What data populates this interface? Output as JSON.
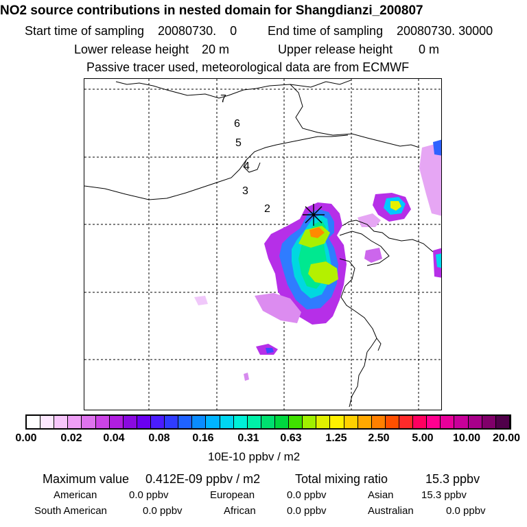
{
  "header": {
    "title": "NO2 source contributions in nested domain for Shangdianzi_200807",
    "start_label": "Start time of sampling",
    "start_value": "20080730.    0",
    "end_label": "End time of sampling",
    "end_value": "20080730. 30000",
    "lower_label": "Lower release height",
    "lower_value": "20 m",
    "upper_label": "Upper release height",
    "upper_value": "0 m",
    "tracer_line": "Passive tracer used, meteorological data are from ECMWF"
  },
  "map": {
    "day_labels": [
      "7",
      "6",
      "5",
      "4",
      "3",
      "2"
    ],
    "receptor": "Shangdianzi"
  },
  "colorbar": {
    "tick_labels": [
      "0.00",
      "0.02",
      "0.04",
      "0.08",
      "0.16",
      "0.31",
      "0.63",
      "1.25",
      "2.50",
      "5.00",
      "10.00",
      "20.00"
    ],
    "unit": "10E-10 ppbv / m2",
    "colors": [
      "#ffffff",
      "#fde8ff",
      "#f7c6fb",
      "#ee9ff5",
      "#de73ee",
      "#cc44e6",
      "#b01ee0",
      "#8a0ae0",
      "#6a00f0",
      "#4b1cff",
      "#2f3cff",
      "#1f62ff",
      "#0a8cff",
      "#00b4ff",
      "#00d6f0",
      "#00f0d8",
      "#00f0a8",
      "#00e070",
      "#00d840",
      "#40e000",
      "#a0f000",
      "#e0f000",
      "#fff000",
      "#ffd000",
      "#ffa800",
      "#ff8000",
      "#ff5000",
      "#ff2a2a",
      "#ff0060",
      "#ff0090",
      "#e8009a",
      "#c8009a",
      "#a8008a",
      "#80006a",
      "#50004a"
    ]
  },
  "footer": {
    "max_label": "Maximum value",
    "max_value": "0.412E-09 ppbv / m2",
    "total_label": "Total mixing ratio",
    "total_value": "15.3 ppbv",
    "regions": [
      {
        "name": "American",
        "value": "0.0 ppbv"
      },
      {
        "name": "European",
        "value": "0.0 ppbv"
      },
      {
        "name": "Asian",
        "value": "15.3 ppbv"
      },
      {
        "name": "South American",
        "value": "0.0 ppbv"
      },
      {
        "name": "African",
        "value": "0.0 ppbv"
      },
      {
        "name": "Australian",
        "value": "0.0 ppbv"
      }
    ]
  }
}
